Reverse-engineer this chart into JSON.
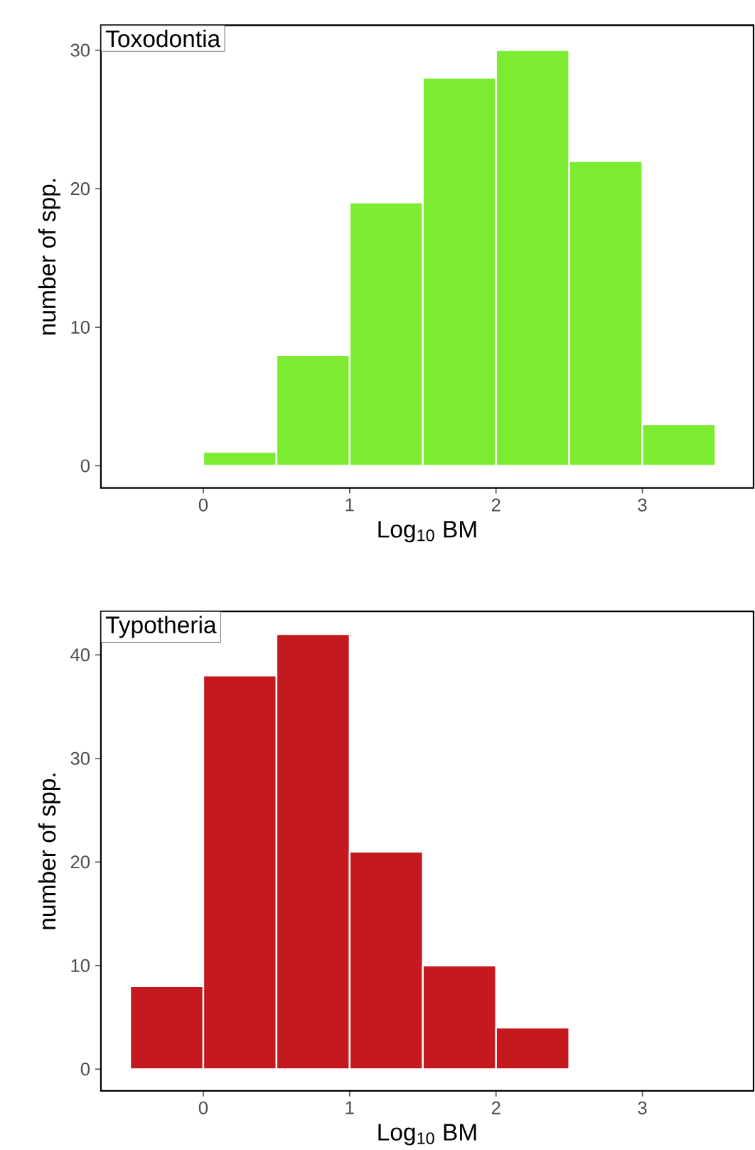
{
  "chart_data": [
    {
      "type": "histogram",
      "title": "Toxodontia",
      "xlabel": "Log$_{10}$ BM",
      "ylabel": "number of spp.",
      "bins": [
        0,
        0.5,
        1,
        1.5,
        2,
        2.5,
        3,
        3.5
      ],
      "values": [
        1,
        8,
        19,
        28,
        30,
        22,
        3
      ],
      "color": "#7cec32",
      "xlim": [
        -0.7,
        3.76
      ],
      "ylim": [
        -1.6,
        31.8
      ],
      "xticks": [
        0,
        1,
        2,
        3
      ],
      "yticks": [
        0,
        10,
        20,
        30
      ],
      "grid": false
    },
    {
      "type": "histogram",
      "title": "Typotheria",
      "xlabel": "Log$_{10}$ BM",
      "ylabel": "number of spp.",
      "bins": [
        -0.5,
        0,
        0.5,
        1,
        1.5,
        2,
        2.5
      ],
      "values": [
        8,
        38,
        42,
        21,
        10,
        4
      ],
      "color": "#c4191f",
      "xlim": [
        -0.7,
        3.76
      ],
      "ylim": [
        -2.1,
        44.2
      ],
      "xticks": [
        0,
        1,
        2,
        3
      ],
      "yticks": [
        0,
        10,
        20,
        30,
        40
      ],
      "grid": false
    }
  ]
}
